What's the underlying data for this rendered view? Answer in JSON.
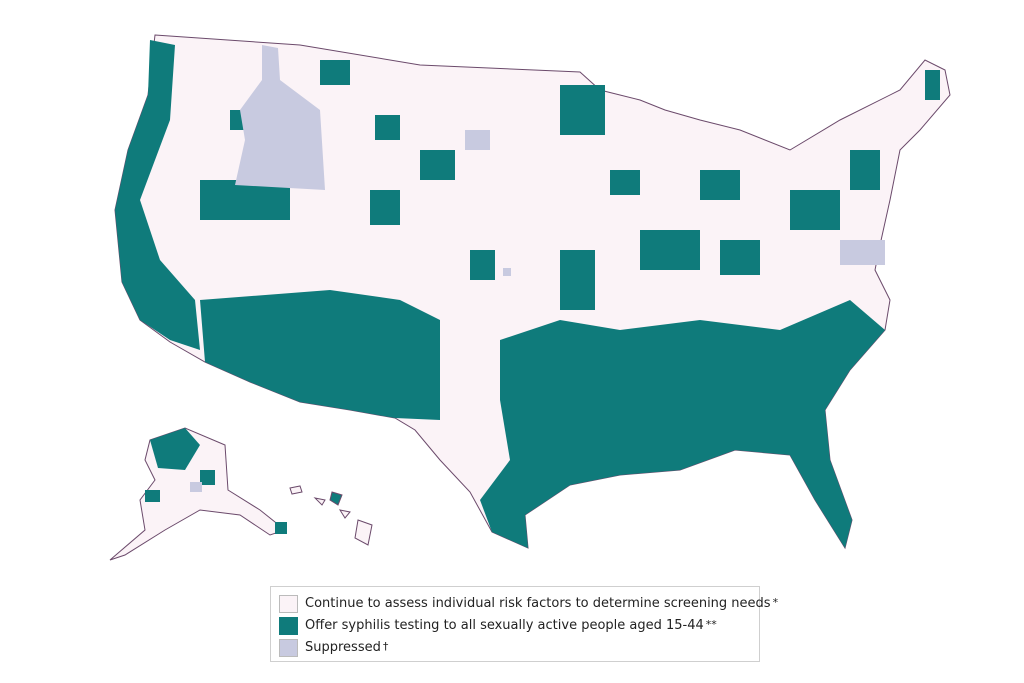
{
  "colors": {
    "assess": "#fbf3f7",
    "offer_testing": "#0f7b7b",
    "suppressed": "#c8cae0",
    "county_border": "#6b4a6b"
  },
  "legend": {
    "items": [
      {
        "label": "Continue to assess individual risk factors to determine screening needs",
        "mark": "*",
        "color_key": "assess"
      },
      {
        "label": "Offer syphilis testing to all sexually active people aged 15-44",
        "mark": "**",
        "color_key": "offer_testing"
      },
      {
        "label": "Suppressed",
        "mark": "†",
        "color_key": "suppressed"
      }
    ]
  }
}
